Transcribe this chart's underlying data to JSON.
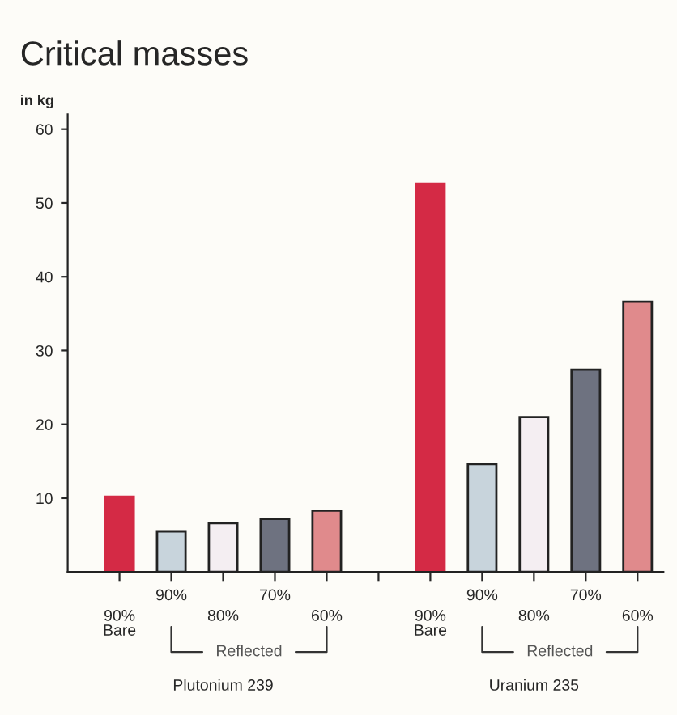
{
  "chart_data": {
    "type": "bar",
    "title": "Critical masses",
    "ylabel": "in kg",
    "categories": [
      "90%\nBare",
      "90%",
      "80%",
      "70%",
      "60%",
      null,
      "90%\nBare",
      "90%",
      "80%",
      "70%",
      "60%"
    ],
    "values": [
      10.2,
      5.5,
      6.6,
      7.2,
      8.3,
      null,
      52.6,
      14.6,
      21,
      27.4,
      36.6
    ],
    "colors": [
      "#d42a45",
      "#c8d4dc",
      "#f4eef2",
      "#6e7280",
      "#e08a8c",
      "#ffffff",
      "#d42a45",
      "#c8d4dc",
      "#f4eef2",
      "#6e7280",
      "#e08a8c"
    ],
    "ylim": [
      0,
      62
    ],
    "yticks": [
      10,
      20,
      30,
      40,
      50,
      60
    ],
    "grid": false,
    "legend": false,
    "annotations": [
      "Reflected",
      "Reflected",
      "Plutonium 239",
      "Uranium 235"
    ]
  }
}
